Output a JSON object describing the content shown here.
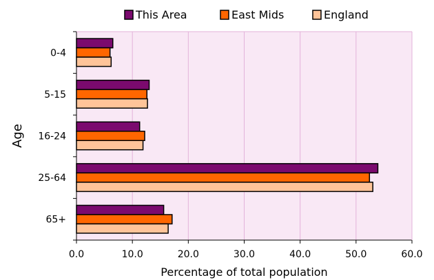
{
  "chart_data": {
    "type": "bar",
    "orientation": "horizontal",
    "title": "",
    "xlabel": "Percentage of total population",
    "ylabel": "Age",
    "categories": [
      "0-4",
      "5-15",
      "16-24",
      "25-64",
      "65+"
    ],
    "series": [
      {
        "name": "This Area",
        "color": "#7B0A6E",
        "values": [
          6.5,
          13.0,
          11.3,
          53.9,
          15.6
        ]
      },
      {
        "name": "East Mids",
        "color": "#FF6600",
        "values": [
          6.0,
          12.6,
          12.2,
          52.4,
          17.1
        ]
      },
      {
        "name": "England",
        "color": "#FFC499",
        "values": [
          6.2,
          12.7,
          11.9,
          53.0,
          16.4
        ]
      }
    ],
    "xlim": [
      0,
      60
    ],
    "xticks": [
      "0.0",
      "10.0",
      "20.0",
      "30.0",
      "40.0",
      "50.0",
      "60.0"
    ],
    "grid": true,
    "legend_position": "top",
    "plot_background": "#F9E8F5",
    "grid_color": "#E3B2DA"
  }
}
